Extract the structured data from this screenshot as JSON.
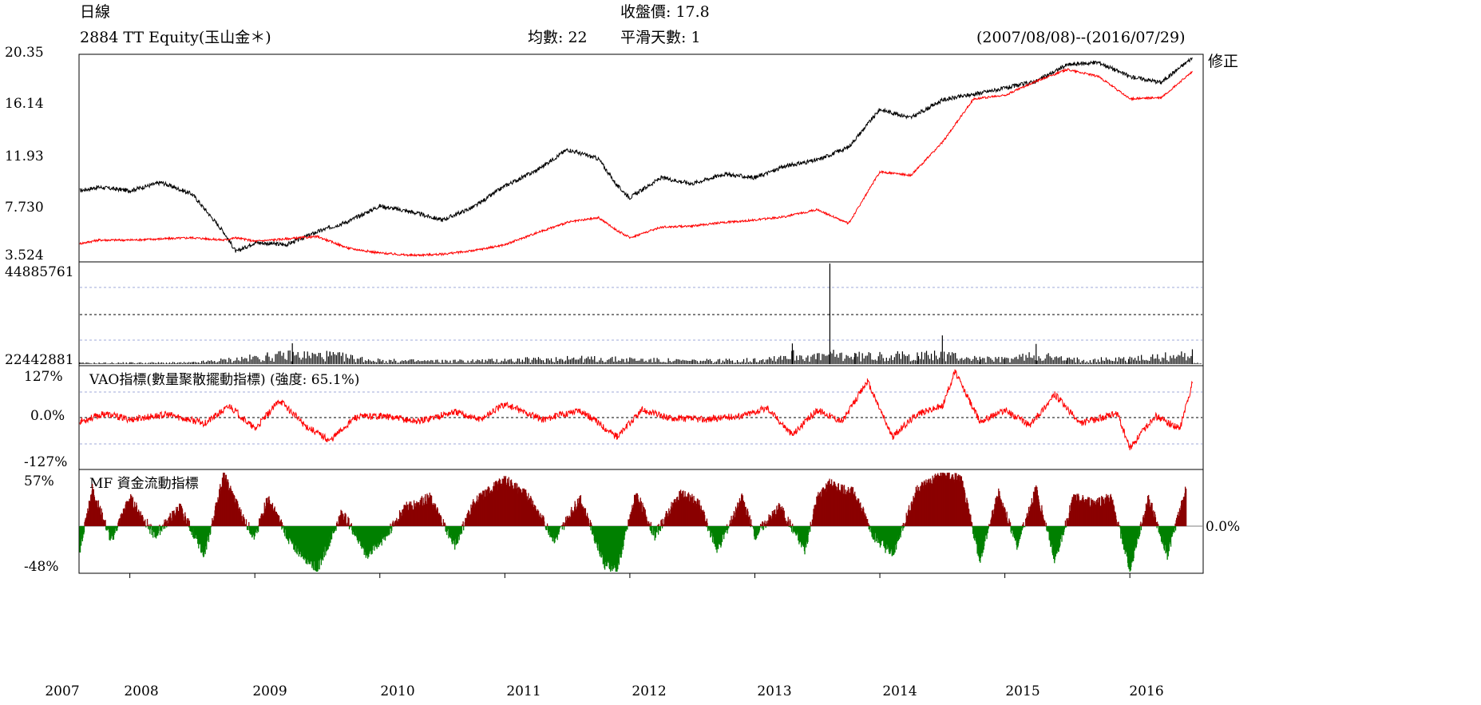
{
  "header": {
    "chart_kind": "日線",
    "close_price": "收盤價: 17.8",
    "ticker": "2884 TT Equity(玉山金＊)",
    "average": "均數: 22",
    "smoothing": "平滑天數: 1",
    "date_range": "(2007/08/08)--(2016/07/29)",
    "adjusted": "修正"
  },
  "colors": {
    "price": "#000000",
    "adjusted": "#ff0000",
    "vao": "#ff0000",
    "mf_pos": "#8b0000",
    "mf_neg": "#008000",
    "grid": "#9fa8da"
  },
  "chart_data": [
    {
      "type": "line",
      "title": "",
      "y_ticks": [
        "20.35",
        "16.14",
        "11.93",
        "7.730",
        "3.524"
      ],
      "ylim": [
        3.524,
        20.35
      ],
      "x_ticks": [
        "2007",
        "2008",
        "2009",
        "2010",
        "2011",
        "2012",
        "2013",
        "2014",
        "2015",
        "2016"
      ],
      "x": [
        2007.6,
        2007.75,
        2008.0,
        2008.25,
        2008.5,
        2008.75,
        2008.85,
        2009.0,
        2009.25,
        2009.5,
        2009.75,
        2010.0,
        2010.25,
        2010.5,
        2010.75,
        2011.0,
        2011.25,
        2011.5,
        2011.75,
        2011.9,
        2012.0,
        2012.25,
        2012.5,
        2012.75,
        2013.0,
        2013.25,
        2013.5,
        2013.75,
        2014.0,
        2014.25,
        2014.5,
        2014.75,
        2015.0,
        2015.25,
        2015.5,
        2015.75,
        2016.0,
        2016.25,
        2016.5
      ],
      "series": [
        {
          "values": [
            8.9,
            9.2,
            8.9,
            9.6,
            8.6,
            5.4,
            3.7,
            4.5,
            4.3,
            5.4,
            6.3,
            7.6,
            7.1,
            6.4,
            7.5,
            9.3,
            10.6,
            12.4,
            11.6,
            9.3,
            8.3,
            10.0,
            9.5,
            10.3,
            10.0,
            11.0,
            11.5,
            12.6,
            15.8,
            15.1,
            16.6,
            17.1,
            17.6,
            18.2,
            19.6,
            19.8,
            18.6,
            18.1,
            20.2
          ]
        },
        {
          "values": [
            4.4,
            4.7,
            4.7,
            4.8,
            4.9,
            4.7,
            4.9,
            4.6,
            4.8,
            5.0,
            4.0,
            3.6,
            3.4,
            3.5,
            3.8,
            4.3,
            5.3,
            6.2,
            6.6,
            5.5,
            4.9,
            5.8,
            5.9,
            6.2,
            6.4,
            6.7,
            7.3,
            6.1,
            10.5,
            10.2,
            13.0,
            16.7,
            17.0,
            18.2,
            19.2,
            18.6,
            16.7,
            16.8,
            19.0
          ]
        }
      ]
    },
    {
      "type": "bar",
      "title": "",
      "y_ticks": [
        "44885761",
        "22442881"
      ],
      "x": [
        2007.6,
        2008.0,
        2008.5,
        2009.1,
        2009.3,
        2009.6,
        2010.0,
        2010.5,
        2011.0,
        2011.5,
        2012.0,
        2012.5,
        2013.0,
        2013.3,
        2013.5,
        2013.6,
        2013.8,
        2014.0,
        2014.3,
        2014.5,
        2014.8,
        2015.0,
        2015.25,
        2015.5,
        2016.0,
        2016.5
      ],
      "values": [
        700000,
        800000,
        900000,
        4800000,
        9300000,
        5600000,
        2200000,
        1900000,
        2400000,
        3600000,
        3000000,
        2000000,
        2600000,
        9200000,
        4600000,
        44885761,
        5000000,
        5400000,
        5200000,
        12800000,
        3300000,
        3000000,
        9000000,
        2800000,
        3300000,
        6600000
      ]
    },
    {
      "type": "line",
      "title": "VAO指標(數量聚散擺動指標) (強度: 65.1%)",
      "y_ticks": [
        "127%",
        "0.0%",
        "-127%"
      ],
      "ylim": [
        -127,
        127
      ],
      "x": [
        2007.6,
        2007.8,
        2008.0,
        2008.3,
        2008.6,
        2008.8,
        2009.0,
        2009.2,
        2009.4,
        2009.6,
        2009.8,
        2010.0,
        2010.3,
        2010.6,
        2010.8,
        2011.0,
        2011.3,
        2011.6,
        2011.9,
        2012.1,
        2012.3,
        2012.6,
        2012.9,
        2013.1,
        2013.3,
        2013.5,
        2013.7,
        2013.9,
        2014.1,
        2014.3,
        2014.5,
        2014.6,
        2014.8,
        2015.0,
        2015.2,
        2015.4,
        2015.6,
        2015.9,
        2016.0,
        2016.2,
        2016.4,
        2016.5
      ],
      "series": [
        {
          "values": [
            -10,
            10,
            -5,
            8,
            -15,
            30,
            -30,
            45,
            -20,
            -60,
            0,
            5,
            -10,
            15,
            -5,
            35,
            -5,
            20,
            -50,
            20,
            0,
            -5,
            5,
            25,
            -45,
            20,
            -10,
            95,
            -50,
            10,
            30,
            120,
            -10,
            20,
            -20,
            60,
            -15,
            10,
            -80,
            5,
            -30,
            90
          ]
        }
      ]
    },
    {
      "type": "bar",
      "title": "MF 資金流動指標",
      "y_ticks": [
        "57%",
        "0.0%",
        "-48%"
      ],
      "ylim": [
        -48,
        57
      ],
      "x": [
        2007.6,
        2007.7,
        2007.85,
        2008.0,
        2008.2,
        2008.4,
        2008.6,
        2008.75,
        2008.9,
        2009.0,
        2009.1,
        2009.3,
        2009.5,
        2009.7,
        2009.9,
        2010.05,
        2010.2,
        2010.4,
        2010.6,
        2010.75,
        2010.9,
        2011.0,
        2011.2,
        2011.4,
        2011.6,
        2011.8,
        2011.9,
        2012.05,
        2012.2,
        2012.4,
        2012.55,
        2012.7,
        2012.9,
        2013.0,
        2013.2,
        2013.4,
        2013.5,
        2013.6,
        2013.8,
        2013.95,
        2014.1,
        2014.3,
        2014.5,
        2014.65,
        2014.8,
        2014.95,
        2015.1,
        2015.25,
        2015.4,
        2015.55,
        2015.7,
        2015.85,
        2016.0,
        2016.15,
        2016.3,
        2016.45
      ],
      "values": [
        -25,
        40,
        -15,
        30,
        -10,
        20,
        -30,
        55,
        10,
        -12,
        30,
        -20,
        -45,
        15,
        -30,
        -10,
        20,
        30,
        -20,
        25,
        40,
        50,
        30,
        -15,
        30,
        -40,
        -45,
        35,
        -10,
        35,
        25,
        -25,
        30,
        -10,
        20,
        -25,
        30,
        45,
        35,
        -10,
        -30,
        40,
        55,
        50,
        -35,
        35,
        -20,
        40,
        -35,
        30,
        25,
        30,
        -45,
        30,
        -30,
        40
      ]
    }
  ],
  "right_label": "0.0%"
}
